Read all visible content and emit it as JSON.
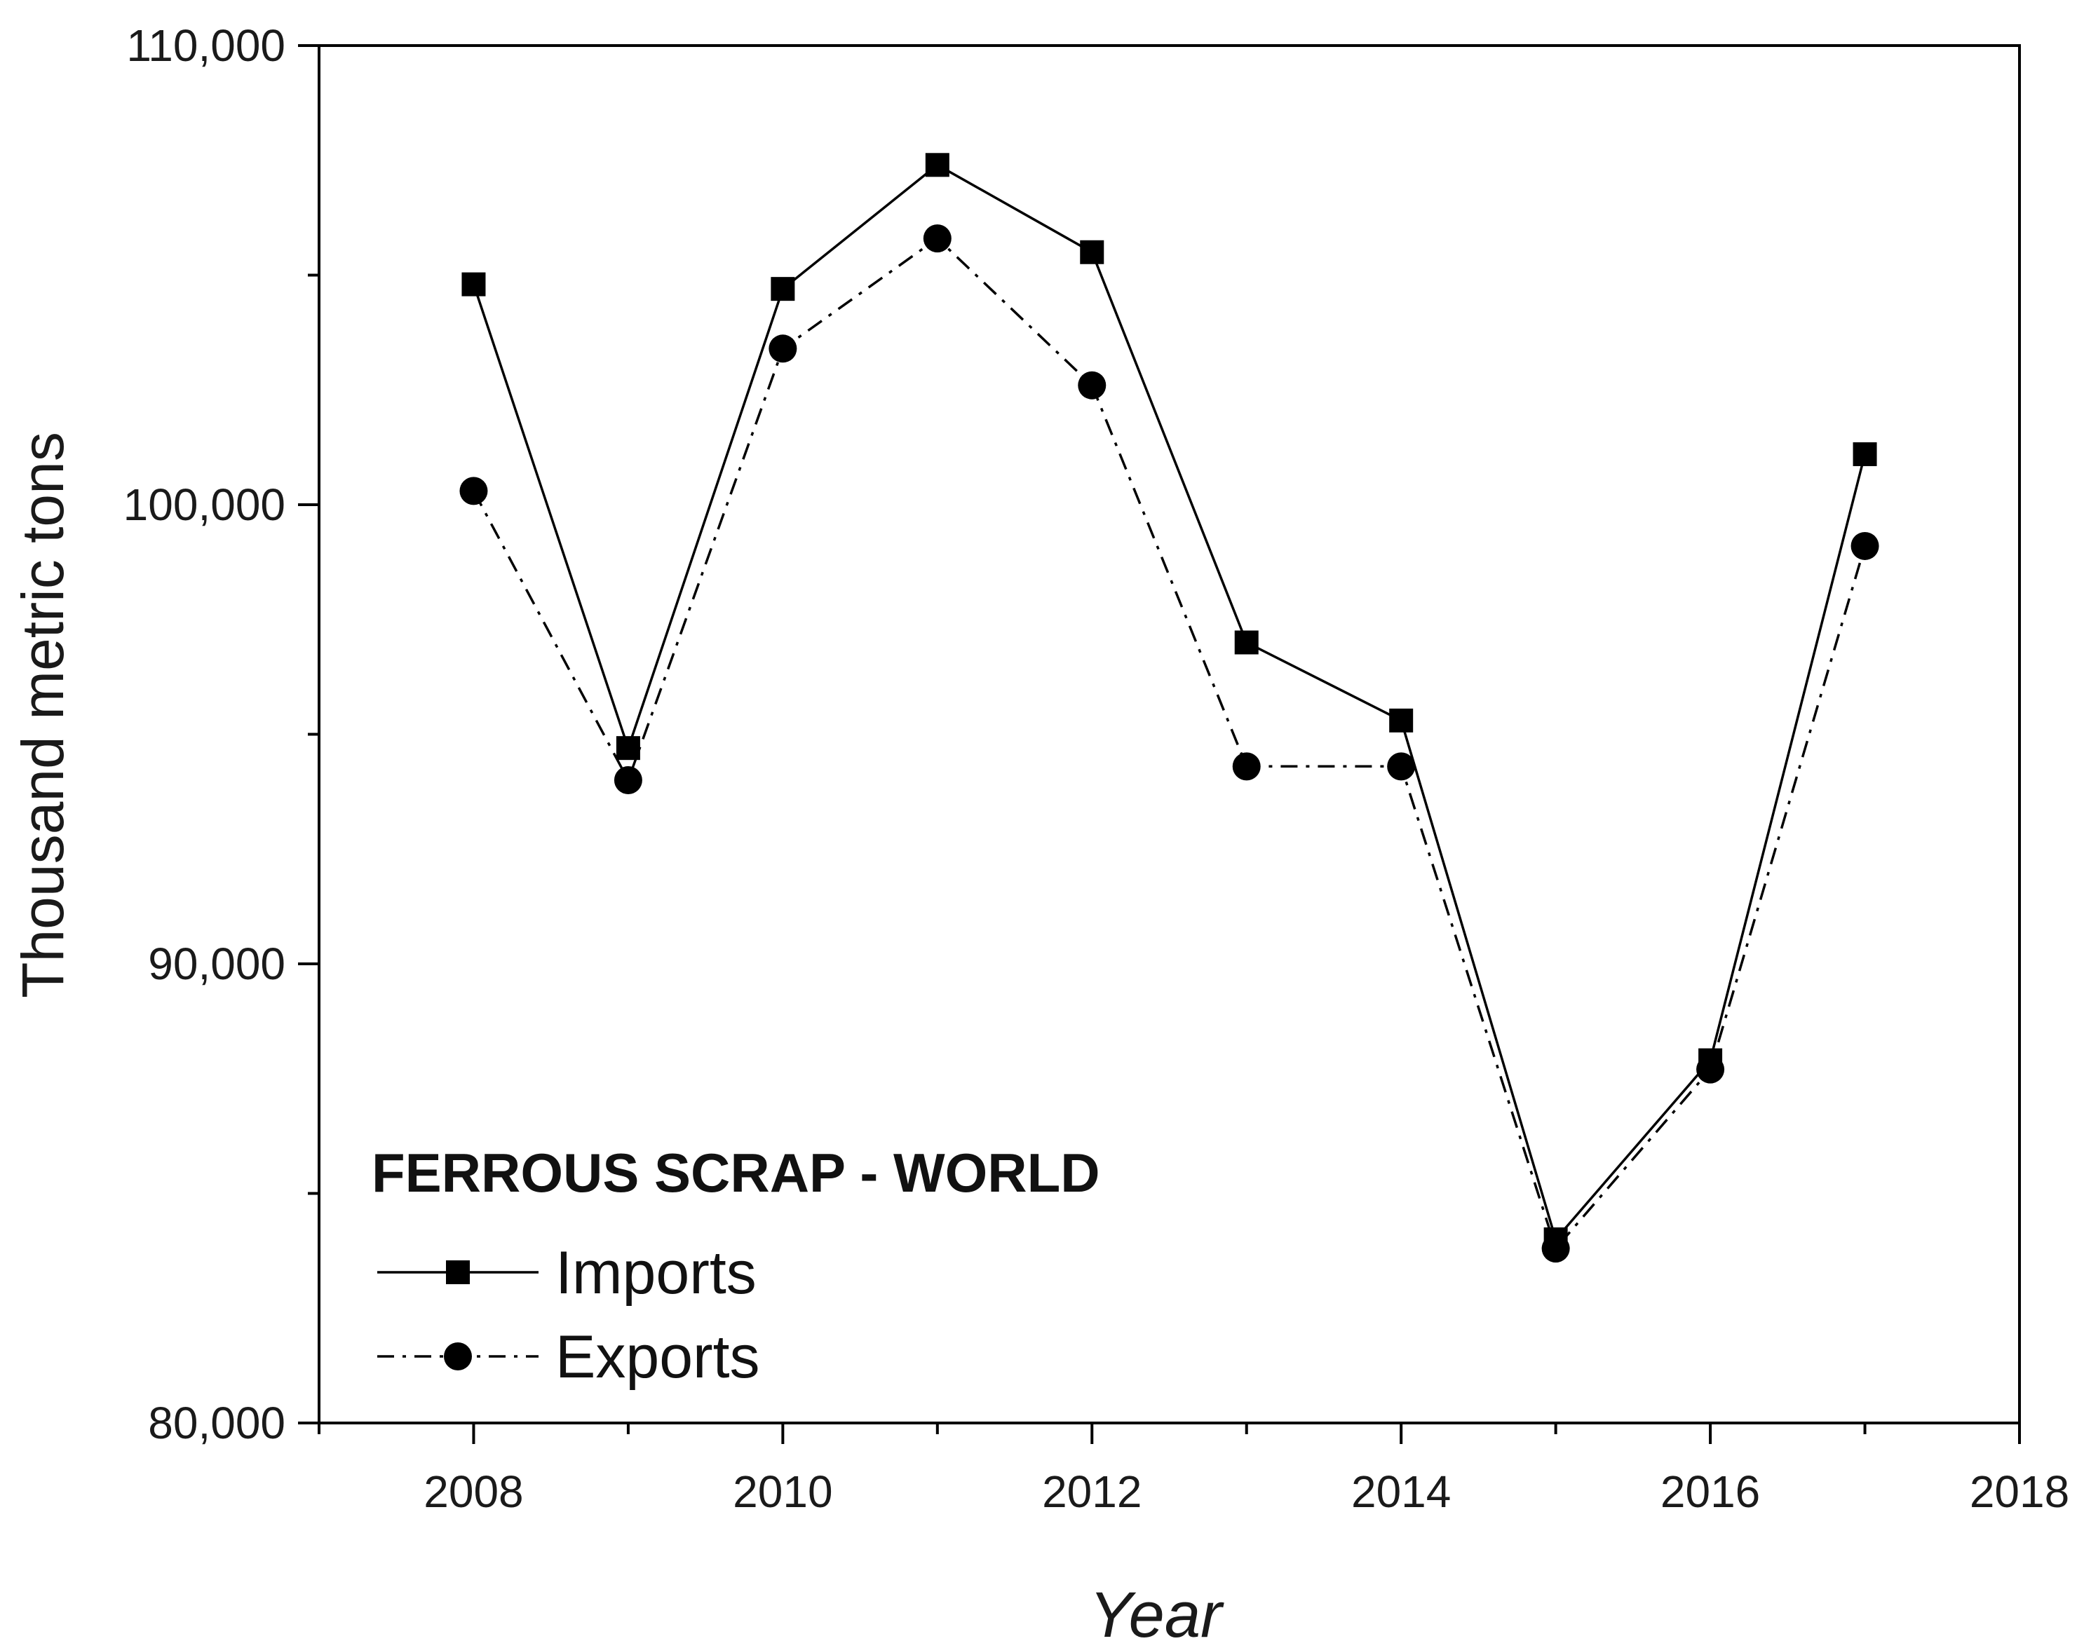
{
  "chart_data": {
    "type": "line",
    "xlabel": "Year",
    "ylabel": "Thousand metric tons",
    "xlim": [
      2007,
      2018
    ],
    "ylim": [
      80000,
      110000
    ],
    "x_ticks": [
      2008,
      2010,
      2012,
      2014,
      2016,
      2018
    ],
    "x_tick_labels": [
      "2008",
      "2010",
      "2012",
      "2014",
      "2016",
      "2018"
    ],
    "y_major_ticks": [
      80000,
      90000,
      100000,
      110000
    ],
    "y_tick_labels": [
      "80,000",
      "90,000",
      "100,000",
      "110,000"
    ],
    "y_minor_ticks": [
      85000,
      95000,
      105000
    ],
    "grid": false,
    "legend": {
      "title": "FERROUS SCRAP - WORLD",
      "placement": "bottom-left"
    },
    "x": [
      2008,
      2009,
      2010,
      2011,
      2012,
      2013,
      2014,
      2015,
      2016,
      2017
    ],
    "series": [
      {
        "name": "Imports",
        "line_style": "solid",
        "marker": "square",
        "color": "#000000",
        "values": [
          104800,
          94700,
          104700,
          107400,
          105500,
          97000,
          95300,
          84000,
          87900,
          101100
        ]
      },
      {
        "name": "Exports",
        "line_style": "dash-dot",
        "marker": "circle",
        "color": "#000000",
        "values": [
          100300,
          94000,
          103400,
          105800,
          102600,
          94300,
          94300,
          83800,
          87700,
          99100
        ]
      }
    ]
  }
}
